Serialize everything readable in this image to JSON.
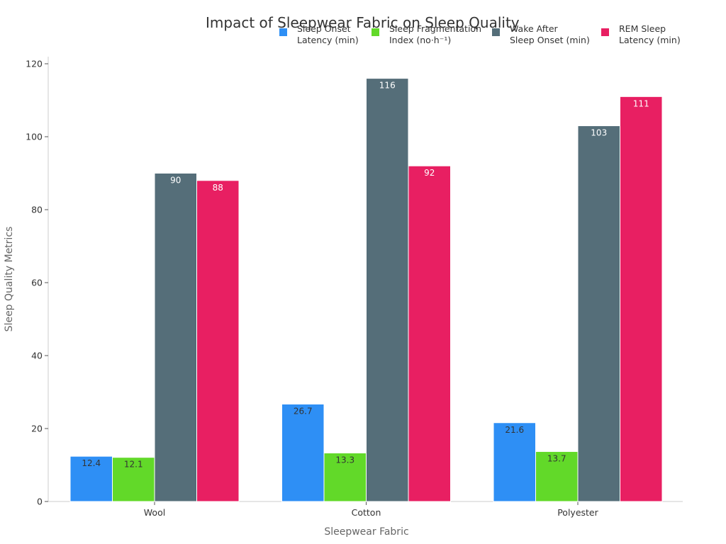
{
  "chart_data": {
    "type": "bar",
    "title": "Impact of Sleepwear Fabric on Sleep Quality",
    "xlabel": "Sleepwear Fabric",
    "ylabel": "Sleep Quality Metrics",
    "categories": [
      "Wool",
      "Cotton",
      "Polyester"
    ],
    "ylim": [
      0,
      120
    ],
    "yticks": [
      0,
      20,
      40,
      60,
      80,
      100,
      120
    ],
    "grid": false,
    "legend_position": "top-right",
    "series": [
      {
        "name": "Sleep Onset\nLatency (min)",
        "color": "#2e8ff5",
        "label_color": "#333333",
        "values": [
          12.4,
          26.7,
          21.6
        ]
      },
      {
        "name": "Sleep Fragmentation\nIndex (no·h⁻¹)",
        "color": "#62d929",
        "label_color": "#333333",
        "values": [
          12.1,
          13.3,
          13.7
        ]
      },
      {
        "name": "Wake After\nSleep Onset (min)",
        "color": "#556e79",
        "label_color": "#ffffff",
        "values": [
          90,
          116,
          103
        ]
      },
      {
        "name": "REM Sleep\nLatency (min)",
        "color": "#e81f62",
        "label_color": "#ffffff",
        "values": [
          88,
          92,
          111
        ]
      }
    ]
  }
}
